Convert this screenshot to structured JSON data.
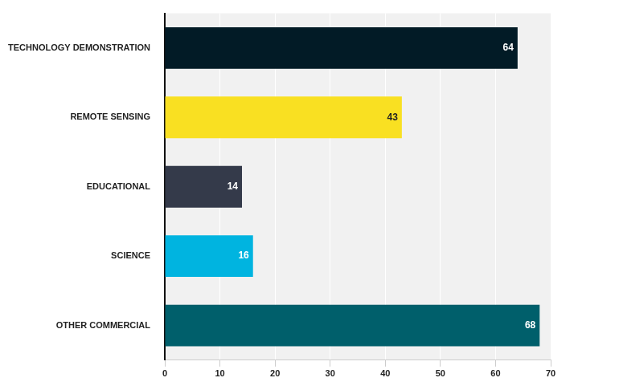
{
  "chart_data": {
    "type": "bar",
    "orientation": "horizontal",
    "categories": [
      "TECHNOLOGY DEMONSTRATION",
      "REMOTE SENSING",
      "EDUCATIONAL",
      "SCIENCE",
      "OTHER COMMERCIAL"
    ],
    "values": [
      64,
      43,
      14,
      16,
      68
    ],
    "colors": [
      "#021b26",
      "#f9e022",
      "#343a4a",
      "#00b4e0",
      "#005f6b"
    ],
    "xlim": [
      0,
      70
    ],
    "xticks": [
      0,
      10,
      20,
      30,
      40,
      50,
      60,
      70
    ],
    "grid": true,
    "data_labels": true
  }
}
